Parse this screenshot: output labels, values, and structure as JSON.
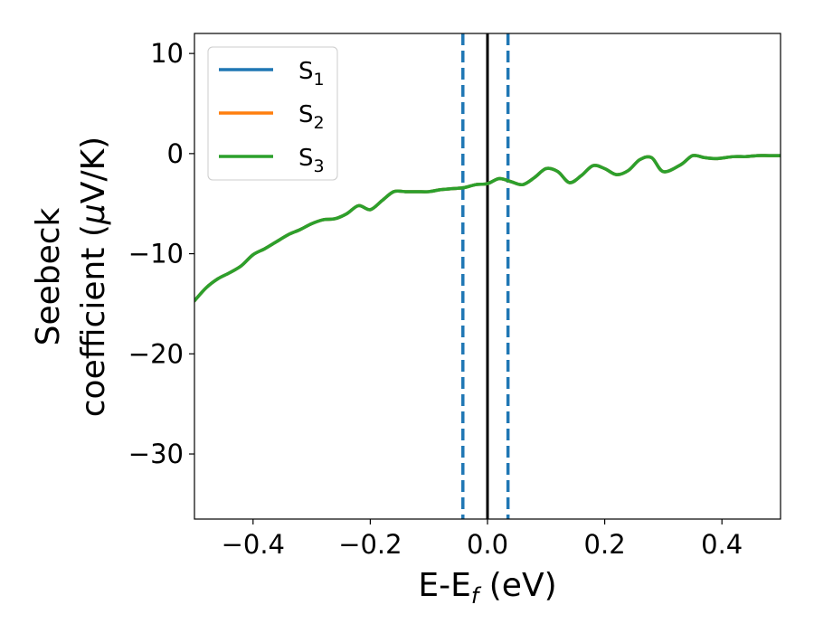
{
  "chart_data": {
    "type": "line",
    "xlabel": {
      "main": "E-E",
      "sub": "f",
      "unit": " (eV)"
    },
    "ylabel": {
      "line1": "Seebeck",
      "line2": "coefficient  (",
      "mu": "μ",
      "unit": "V/K)"
    },
    "xlim": [
      -0.5,
      0.5
    ],
    "ylim": [
      -36.5,
      12
    ],
    "xticks": [
      -0.4,
      -0.2,
      0.0,
      0.2,
      0.4
    ],
    "xtick_labels": [
      "−0.4",
      "−0.2",
      "0.0",
      "0.2",
      "0.4"
    ],
    "yticks": [
      10,
      0,
      -10,
      -20,
      -30
    ],
    "ytick_labels": [
      "10",
      "0",
      "−10",
      "−20",
      "−30"
    ],
    "grid": false,
    "legend_position": "top-left",
    "vlines": [
      {
        "x": -0.042,
        "style": "dashed",
        "color": "#1f77b4"
      },
      {
        "x": 0.035,
        "style": "dashed",
        "color": "#1f77b4"
      },
      {
        "x": 0.0,
        "style": "solid",
        "color": "#000000"
      }
    ],
    "x": [
      -0.5,
      -0.48,
      -0.46,
      -0.44,
      -0.42,
      -0.4,
      -0.38,
      -0.36,
      -0.34,
      -0.32,
      -0.3,
      -0.28,
      -0.26,
      -0.24,
      -0.22,
      -0.2,
      -0.18,
      -0.16,
      -0.14,
      -0.12,
      -0.1,
      -0.08,
      -0.06,
      -0.04,
      -0.02,
      0.0,
      0.02,
      0.04,
      0.06,
      0.08,
      0.1,
      0.12,
      0.14,
      0.16,
      0.18,
      0.2,
      0.22,
      0.24,
      0.26,
      0.28,
      0.3,
      0.33,
      0.35,
      0.37,
      0.39,
      0.42,
      0.44,
      0.46,
      0.48,
      0.5
    ],
    "series": [
      {
        "name": "S",
        "sub": "1",
        "color": "#1f77b4",
        "values": [
          -14.7,
          -13.4,
          -12.5,
          -11.9,
          -11.2,
          -10.1,
          -9.5,
          -8.8,
          -8.1,
          -7.6,
          -7.0,
          -6.6,
          -6.5,
          -6.0,
          -5.2,
          -5.6,
          -4.7,
          -3.8,
          -3.8,
          -3.8,
          -3.8,
          -3.6,
          -3.5,
          -3.4,
          -3.1,
          -3.0,
          -2.5,
          -2.8,
          -3.1,
          -2.4,
          -1.5,
          -1.8,
          -2.9,
          -2.2,
          -1.2,
          -1.5,
          -2.1,
          -1.7,
          -0.6,
          -0.4,
          -1.8,
          -1.1,
          -0.2,
          -0.4,
          -0.5,
          -0.3,
          -0.3,
          -0.2,
          -0.2,
          -0.2
        ]
      },
      {
        "name": "S",
        "sub": "2",
        "color": "#ff7f0e",
        "values": [
          -14.7,
          -13.4,
          -12.5,
          -11.9,
          -11.2,
          -10.1,
          -9.5,
          -8.8,
          -8.1,
          -7.6,
          -7.0,
          -6.6,
          -6.5,
          -6.0,
          -5.2,
          -5.6,
          -4.7,
          -3.8,
          -3.8,
          -3.8,
          -3.8,
          -3.6,
          -3.5,
          -3.4,
          -3.1,
          -3.0,
          -2.5,
          -2.8,
          -3.1,
          -2.4,
          -1.5,
          -1.8,
          -2.9,
          -2.2,
          -1.2,
          -1.5,
          -2.1,
          -1.7,
          -0.6,
          -0.4,
          -1.8,
          -1.1,
          -0.2,
          -0.4,
          -0.5,
          -0.3,
          -0.3,
          -0.2,
          -0.2,
          -0.2
        ]
      },
      {
        "name": "S",
        "sub": "3",
        "color": "#2ca02c",
        "values": [
          -14.7,
          -13.4,
          -12.5,
          -11.9,
          -11.2,
          -10.1,
          -9.5,
          -8.8,
          -8.1,
          -7.6,
          -7.0,
          -6.6,
          -6.5,
          -6.0,
          -5.2,
          -5.6,
          -4.7,
          -3.8,
          -3.8,
          -3.8,
          -3.8,
          -3.6,
          -3.5,
          -3.4,
          -3.1,
          -3.0,
          -2.5,
          -2.8,
          -3.1,
          -2.4,
          -1.5,
          -1.8,
          -2.9,
          -2.2,
          -1.2,
          -1.5,
          -2.1,
          -1.7,
          -0.6,
          -0.4,
          -1.8,
          -1.1,
          -0.2,
          -0.4,
          -0.5,
          -0.3,
          -0.3,
          -0.2,
          -0.2,
          -0.2
        ]
      }
    ]
  }
}
